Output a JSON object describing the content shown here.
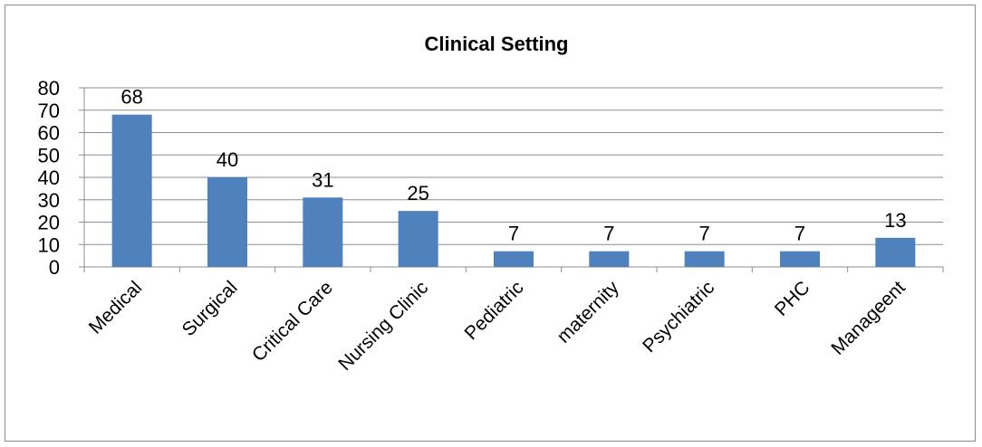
{
  "chart_data": {
    "type": "bar",
    "title": "Clinical Setting",
    "categories": [
      "Medical",
      "Surgical",
      "Critical Care",
      "Nursing Clinic",
      "Pediatric",
      "maternity",
      "Psychiatric",
      "PHC",
      "Manageent"
    ],
    "values": [
      68,
      40,
      31,
      25,
      7,
      7,
      7,
      7,
      13
    ],
    "ylim": [
      0,
      80
    ],
    "yticks": [
      0,
      10,
      20,
      30,
      40,
      50,
      60,
      70,
      80
    ],
    "grid": true,
    "legend": "none",
    "bar_color": "#4f81bd"
  }
}
